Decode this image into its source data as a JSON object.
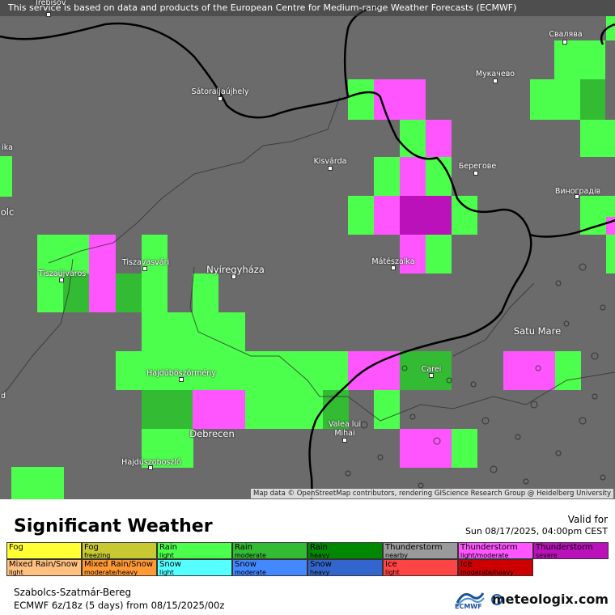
{
  "map": {
    "notice": "This service is based on data and products of the European Centre for Medium-range Weather Forecasts (ECMWF)",
    "attribution": "Map data © OpenStreetMap contributors, rendering GIScience Research Group @ Heidelberg University",
    "cities": [
      {
        "name": "Trebišov",
        "size": "small"
      },
      {
        "name": "Свалява",
        "size": "small"
      },
      {
        "name": "Мукачево",
        "size": "small"
      },
      {
        "name": "Sátoraljaújhely",
        "size": "small"
      },
      {
        "name": "ika",
        "size": "small"
      },
      {
        "name": "Kisvárda",
        "size": "small"
      },
      {
        "name": "Берегове",
        "size": "small"
      },
      {
        "name": "Виноградів",
        "size": "small"
      },
      {
        "name": "olc",
        "size": "big"
      },
      {
        "name": "Tiszaújváros",
        "size": "small"
      },
      {
        "name": "Tiszavasvári",
        "size": "small"
      },
      {
        "name": "Nyíregyháza",
        "size": "big"
      },
      {
        "name": "Mátészalka",
        "size": "small"
      },
      {
        "name": "Satu Mare",
        "size": "big"
      },
      {
        "name": "Hajdúböszörmény",
        "size": "small"
      },
      {
        "name": "Carei",
        "size": "small"
      },
      {
        "name": "Valea lui Mihai",
        "size": "small"
      },
      {
        "name": "Debrecen",
        "size": "big"
      },
      {
        "name": "Hajdúszoboszló",
        "size": "small"
      },
      {
        "name": "d",
        "size": "small"
      }
    ],
    "colors": {
      "background": "#6b6b6b",
      "rain_light": "#4dff4d",
      "rain_moderate": "#33bb33",
      "thunder_light": "#ff55ff",
      "thunder_severe": "#bb11bb",
      "border": "#000000"
    }
  },
  "legend": {
    "title": "Significant Weather",
    "valid_label": "Valid for",
    "valid_time": "Sun 08/17/2025, 04:00pm CEST",
    "items": [
      {
        "label": "Fog",
        "sub": "",
        "color": "#ffff33"
      },
      {
        "label": "Fog",
        "sub": "freezing",
        "color": "#c8c832"
      },
      {
        "label": "Rain",
        "sub": "light",
        "color": "#4dff4d"
      },
      {
        "label": "Rain",
        "sub": "moderate",
        "color": "#33bb33"
      },
      {
        "label": "Rain",
        "sub": "heavy",
        "color": "#008800"
      },
      {
        "label": "Thunderstorm",
        "sub": "nearby",
        "color": "#9a9a9a"
      },
      {
        "label": "Thunderstorm",
        "sub": "light/moderate",
        "color": "#ff55ff"
      },
      {
        "label": "Thunderstorm",
        "sub": "severe",
        "color": "#bb11bb"
      },
      {
        "label": "Mixed Rain/Snow",
        "sub": "light",
        "color": "#ffc080"
      },
      {
        "label": "Mixed Rain/Snow",
        "sub": "moderate/heavy",
        "color": "#ff9933"
      },
      {
        "label": "Snow",
        "sub": "light",
        "color": "#55ffff"
      },
      {
        "label": "Snow",
        "sub": "moderate",
        "color": "#4488ff"
      },
      {
        "label": "Snow",
        "sub": "heavy",
        "color": "#3366cc"
      },
      {
        "label": "Ice",
        "sub": "light",
        "color": "#ff4444"
      },
      {
        "label": "Ice",
        "sub": "moderate/heavy",
        "color": "#cc0000"
      }
    ]
  },
  "footer": {
    "region": "Szabolcs-Szatmár-Bereg",
    "model": "ECMWF 6z/18z (5 days) from  08/15/2025/00z",
    "ecmwf_logo": "ECMWF",
    "brand": "meteologix.com"
  }
}
